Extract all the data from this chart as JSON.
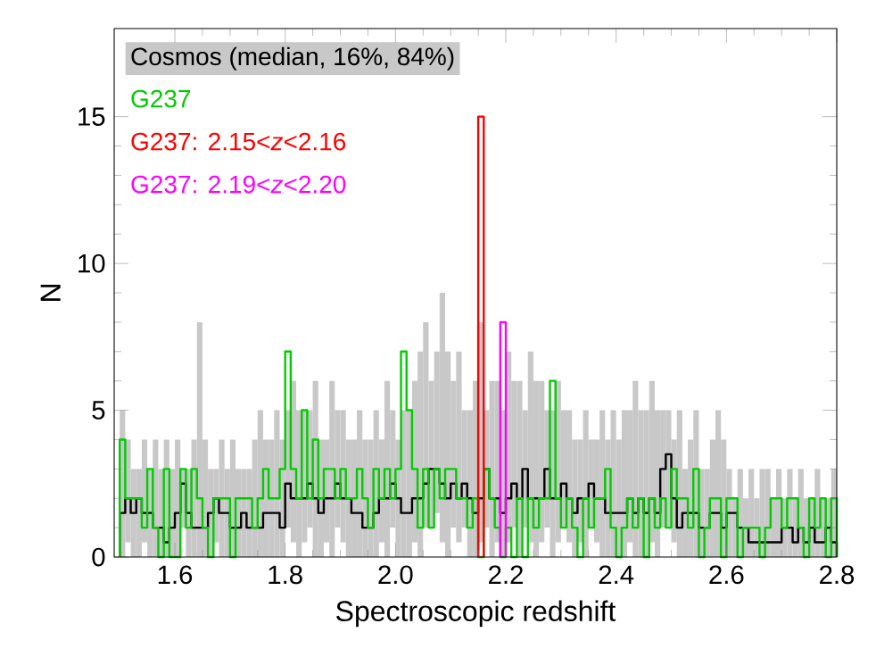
{
  "chart_data": {
    "type": "histogram",
    "xlabel": "Spectroscopic redshift",
    "ylabel": "N",
    "xlim": [
      1.49,
      2.8
    ],
    "ylim": [
      0,
      18
    ],
    "xticks": [
      1.6,
      1.8,
      {
        "value": 2.0,
        "label": "2.0"
      },
      2.2,
      2.4,
      2.6,
      2.8
    ],
    "yticks": [
      0,
      5,
      10,
      15
    ],
    "legend": "top left",
    "bins": [
      1.5,
      1.51,
      1.52,
      1.53,
      1.54,
      1.55,
      1.56,
      1.57,
      1.58,
      1.59,
      1.6,
      1.61,
      1.62,
      1.63,
      1.64,
      1.65,
      1.66,
      1.67,
      1.68,
      1.69,
      1.7,
      1.71,
      1.72,
      1.73,
      1.74,
      1.75,
      1.76,
      1.77,
      1.78,
      1.79,
      1.8,
      1.81,
      1.82,
      1.83,
      1.84,
      1.85,
      1.86,
      1.87,
      1.88,
      1.89,
      1.9,
      1.91,
      1.92,
      1.93,
      1.94,
      1.95,
      1.96,
      1.97,
      1.98,
      1.99,
      2.0,
      2.01,
      2.02,
      2.03,
      2.04,
      2.05,
      2.06,
      2.07,
      2.08,
      2.09,
      2.1,
      2.11,
      2.12,
      2.13,
      2.14,
      2.15,
      2.16,
      2.17,
      2.18,
      2.19,
      2.2,
      2.21,
      2.22,
      2.23,
      2.24,
      2.25,
      2.26,
      2.27,
      2.28,
      2.29,
      2.3,
      2.31,
      2.32,
      2.33,
      2.34,
      2.35,
      2.36,
      2.37,
      2.38,
      2.39,
      2.4,
      2.41,
      2.42,
      2.43,
      2.44,
      2.45,
      2.46,
      2.47,
      2.48,
      2.49,
      2.5,
      2.51,
      2.52,
      2.53,
      2.54,
      2.55,
      2.56,
      2.57,
      2.58,
      2.59,
      2.6,
      2.61,
      2.62,
      2.63,
      2.64,
      2.65,
      2.66,
      2.67,
      2.68,
      2.69,
      2.7,
      2.71,
      2.72,
      2.73,
      2.74,
      2.75,
      2.76,
      2.77,
      2.78,
      2.79,
      2.8
    ],
    "series": [
      {
        "name": "Cosmos (median, 16%, 84%)",
        "type": "bar",
        "color": "#c8c8c8",
        "x": [
          1.505,
          1.515,
          1.525,
          1.535,
          1.545,
          1.555,
          1.565,
          1.575,
          1.585,
          1.595,
          1.605,
          1.615,
          1.625,
          1.635,
          1.645,
          1.655,
          1.665,
          1.675,
          1.685,
          1.695,
          1.705,
          1.715,
          1.725,
          1.735,
          1.745,
          1.755,
          1.765,
          1.775,
          1.785,
          1.795,
          1.805,
          1.815,
          1.825,
          1.835,
          1.845,
          1.855,
          1.865,
          1.875,
          1.885,
          1.895,
          1.905,
          1.915,
          1.925,
          1.935,
          1.945,
          1.955,
          1.965,
          1.975,
          1.985,
          1.995,
          2.005,
          2.015,
          2.025,
          2.035,
          2.045,
          2.055,
          2.065,
          2.075,
          2.085,
          2.095,
          2.105,
          2.115,
          2.125,
          2.135,
          2.145,
          2.155,
          2.165,
          2.175,
          2.185,
          2.195,
          2.205,
          2.215,
          2.225,
          2.235,
          2.245,
          2.255,
          2.265,
          2.275,
          2.285,
          2.295,
          2.305,
          2.315,
          2.325,
          2.335,
          2.345,
          2.355,
          2.365,
          2.375,
          2.385,
          2.395,
          2.405,
          2.415,
          2.425,
          2.435,
          2.445,
          2.455,
          2.465,
          2.475,
          2.485,
          2.495,
          2.505,
          2.515,
          2.525,
          2.535,
          2.545,
          2.555,
          2.565,
          2.575,
          2.585,
          2.595,
          2.605,
          2.615,
          2.625,
          2.635,
          2.645,
          2.655,
          2.665,
          2.675,
          2.685,
          2.695,
          2.705,
          2.715,
          2.725,
          2.735,
          2.745,
          2.755,
          2.765,
          2.775,
          2.785,
          2.795
        ],
        "base": [
          0,
          0.5,
          0,
          0,
          0.5,
          0,
          0,
          0,
          0,
          0,
          0,
          1,
          0,
          0,
          0,
          0,
          0,
          0.5,
          0,
          0,
          0,
          0,
          0,
          0,
          0,
          0,
          0,
          0,
          0,
          0,
          1,
          0.5,
          0,
          0.5,
          1,
          0,
          0,
          0.5,
          0,
          1,
          0.5,
          0,
          0,
          0,
          0,
          0,
          0,
          0.5,
          0,
          1,
          0,
          0,
          0,
          0.5,
          0,
          1,
          1,
          1.5,
          0.5,
          0,
          1,
          0.5,
          1,
          0,
          0,
          0.5,
          1,
          0,
          0.5,
          0,
          0.5,
          1,
          0,
          1,
          0.5,
          0,
          0.5,
          1,
          0,
          0.5,
          1,
          0.5,
          0,
          0.5,
          0,
          1,
          0.5,
          0,
          0,
          0,
          0,
          0,
          0.5,
          0,
          0,
          0,
          0.5,
          0,
          1,
          1,
          0.5,
          0,
          0,
          0,
          0,
          0,
          0,
          0,
          0,
          0,
          0,
          0,
          0,
          0,
          0,
          0,
          0,
          0,
          0,
          0,
          0,
          0,
          0,
          0,
          0,
          0,
          0,
          0,
          0,
          0
        ],
        "values": [
          5,
          3.5,
          3,
          3,
          3.5,
          3,
          4,
          3,
          4,
          3,
          4,
          2,
          3,
          4,
          8,
          4,
          3,
          2.5,
          4,
          3,
          4,
          3,
          3,
          3,
          4,
          5,
          4,
          4,
          5,
          4,
          4,
          5.5,
          5,
          4.5,
          4,
          6,
          4,
          3.5,
          6,
          4,
          4.5,
          4,
          4,
          5,
          4,
          4,
          5,
          3.5,
          6,
          4,
          4,
          5,
          5,
          5.5,
          7,
          7,
          5,
          5.5,
          8.5,
          7,
          5,
          6.5,
          4,
          5,
          6,
          7.5,
          4,
          6,
          5.5,
          5,
          6.5,
          5,
          6,
          4,
          6.5,
          6,
          5.5,
          4,
          5,
          5.5,
          4,
          4.5,
          4,
          3.5,
          5,
          3,
          3.5,
          5,
          4,
          5,
          4,
          5,
          4.5,
          6,
          5,
          5,
          5.5,
          5,
          4,
          4,
          3.5,
          5,
          3,
          4,
          5,
          3,
          3,
          4,
          5,
          4,
          3,
          2,
          3,
          2,
          3,
          2,
          3,
          3,
          2,
          3,
          2,
          3,
          2,
          3,
          2,
          2,
          3,
          2,
          2,
          3
        ]
      },
      {
        "color": "#000000",
        "values": [
          1.5,
          2,
          1.5,
          2,
          1.5,
          1.5,
          1,
          1,
          0.5,
          1,
          1.5,
          2.5,
          1.5,
          1,
          1,
          1,
          1.5,
          2,
          1.5,
          1.5,
          1,
          1,
          1.5,
          1,
          1,
          1,
          1.5,
          1.5,
          1.5,
          1,
          2.5,
          2,
          2,
          2,
          2.5,
          2,
          1.5,
          2,
          2,
          2.5,
          2,
          2,
          1.5,
          1.5,
          1,
          1,
          1.5,
          2,
          2,
          2.5,
          2,
          1.5,
          1.5,
          2,
          2,
          2.5,
          3,
          3,
          2.5,
          2,
          2.5,
          2,
          2.5,
          2,
          1.5,
          2,
          3,
          2,
          2,
          1.5,
          2,
          2.5,
          2,
          3,
          2,
          2,
          2,
          3,
          2,
          2,
          2.5,
          2,
          1.5,
          2,
          2,
          2.5,
          2,
          2,
          1.5,
          1.5,
          1.5,
          1.5,
          2,
          1.5,
          2,
          1.5,
          2,
          1.5,
          3,
          3.5,
          2,
          1,
          1.5,
          1.5,
          1.5,
          1,
          1,
          1.5,
          1.5,
          1,
          1.5,
          1.5,
          1,
          1,
          0.5,
          0.5,
          0.5,
          0.5,
          0.5,
          0.5,
          1,
          1,
          0.5,
          1,
          0.5,
          1,
          0.5,
          0.5,
          1,
          0.5
        ]
      },
      {
        "name": "G237",
        "color": "#00cc00",
        "values": [
          4,
          2,
          2,
          2,
          1,
          3,
          1,
          0,
          3,
          0,
          0,
          3,
          1,
          3,
          2,
          1,
          0,
          2,
          2,
          2,
          0,
          2,
          2,
          2,
          1,
          2,
          3,
          2,
          2,
          3,
          7,
          3,
          2,
          5,
          2,
          4,
          2,
          3,
          3,
          2,
          3,
          2,
          2,
          3,
          2,
          1,
          3,
          2,
          3,
          2,
          3,
          7,
          5,
          3,
          1,
          3,
          1,
          3,
          2,
          3,
          3,
          2,
          2,
          1,
          2,
          0,
          3,
          2,
          1,
          0,
          1,
          0,
          2,
          0,
          2,
          1,
          2,
          2,
          6,
          2,
          1,
          2,
          1,
          0,
          2,
          1,
          2,
          2,
          3,
          1,
          0,
          1,
          2,
          1,
          2,
          0,
          2,
          1,
          2,
          1,
          3,
          2,
          2,
          1,
          3,
          0,
          1,
          2,
          2,
          0,
          2,
          2,
          0,
          1,
          1,
          1,
          0,
          1,
          2,
          2,
          1,
          2,
          2,
          1,
          0,
          2,
          1,
          2,
          0,
          2
        ]
      },
      {
        "name": "G237: 2.15<*z*<2.16",
        "color": "#ff0000",
        "bins": [
          2.15,
          2.16
        ],
        "values": [
          15
        ]
      },
      {
        "name": "G237: 2.19<*z*<2.20",
        "color": "#ff00ff",
        "bins": [
          2.19,
          2.2
        ],
        "values": [
          8
        ]
      }
    ]
  }
}
